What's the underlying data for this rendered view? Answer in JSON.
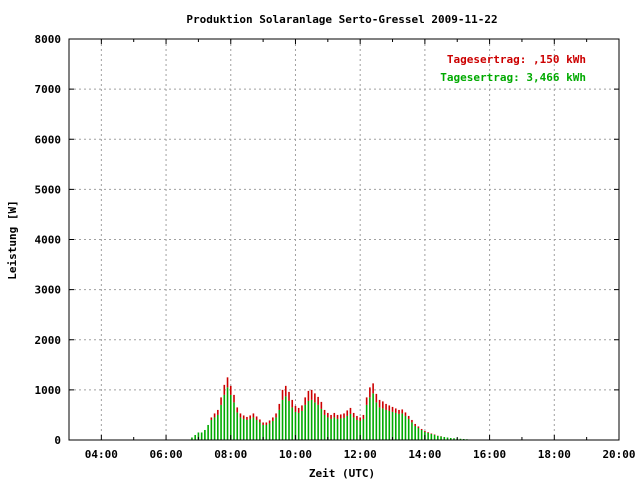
{
  "chart_data": {
    "type": "bar",
    "title": "Produktion Solaranlage Serto-Gressel 2009-11-22",
    "xlabel": "Zeit (UTC)",
    "ylabel": "Leistung [W]",
    "xlim": [
      3,
      20
    ],
    "ylim": [
      0,
      8000
    ],
    "x_tick_labels": [
      "04:00",
      "06:00",
      "08:00",
      "10:00",
      "12:00",
      "14:00",
      "16:00",
      "18:00",
      "20:00"
    ],
    "x_tick_values": [
      4,
      6,
      8,
      10,
      12,
      14,
      16,
      18,
      20
    ],
    "y_tick_labels": [
      "0",
      "1000",
      "2000",
      "3000",
      "4000",
      "5000",
      "6000",
      "7000",
      "8000"
    ],
    "y_tick_values": [
      0,
      1000,
      2000,
      3000,
      4000,
      5000,
      6000,
      7000,
      8000
    ],
    "grid": true,
    "legend_position": "top-right",
    "annotations": [
      {
        "text": "Tagesertrag: ,150 kWh",
        "color": "#cc0000"
      },
      {
        "text": "Tagesertrag: 3,466 kWh",
        "color": "#00aa00"
      }
    ],
    "x": [
      6.8,
      6.9,
      7.0,
      7.1,
      7.2,
      7.3,
      7.4,
      7.5,
      7.6,
      7.7,
      7.8,
      7.9,
      8.0,
      8.1,
      8.2,
      8.3,
      8.4,
      8.5,
      8.6,
      8.7,
      8.8,
      8.9,
      9.0,
      9.1,
      9.2,
      9.3,
      9.4,
      9.5,
      9.6,
      9.7,
      9.8,
      9.9,
      10.0,
      10.1,
      10.2,
      10.3,
      10.4,
      10.5,
      10.6,
      10.7,
      10.8,
      10.9,
      11.0,
      11.1,
      11.2,
      11.3,
      11.4,
      11.5,
      11.6,
      11.7,
      11.8,
      11.9,
      12.0,
      12.1,
      12.2,
      12.3,
      12.4,
      12.5,
      12.6,
      12.7,
      12.8,
      12.9,
      13.0,
      13.1,
      13.2,
      13.3,
      13.4,
      13.5,
      13.6,
      13.7,
      13.8,
      13.9,
      14.0,
      14.1,
      14.2,
      14.3,
      14.4,
      14.5,
      14.6,
      14.7,
      14.8,
      14.9,
      15.0,
      15.1,
      15.2,
      15.3,
      15.4,
      15.5
    ],
    "series": [
      {
        "color": "#00aa00",
        "values": [
          50,
          100,
          150,
          150,
          200,
          300,
          400,
          450,
          500,
          700,
          900,
          1050,
          900,
          750,
          550,
          450,
          420,
          400,
          420,
          450,
          400,
          350,
          300,
          300,
          330,
          380,
          450,
          600,
          800,
          870,
          780,
          650,
          560,
          540,
          580,
          700,
          780,
          800,
          750,
          700,
          620,
          500,
          450,
          420,
          450,
          420,
          430,
          440,
          480,
          520,
          450,
          400,
          380,
          420,
          700,
          850,
          930,
          750,
          650,
          630,
          600,
          580,
          560,
          540,
          520,
          530,
          480,
          420,
          350,
          280,
          240,
          200,
          160,
          140,
          120,
          100,
          80,
          70,
          60,
          50,
          40,
          35,
          30,
          25,
          20,
          15,
          10,
          8
        ]
      },
      {
        "color": "#cc0000",
        "values": [
          0,
          0,
          0,
          0,
          0,
          0,
          50,
          80,
          100,
          150,
          200,
          200,
          180,
          150,
          100,
          80,
          70,
          60,
          70,
          80,
          70,
          60,
          50,
          50,
          60,
          70,
          80,
          120,
          200,
          210,
          180,
          150,
          120,
          100,
          110,
          150,
          200,
          200,
          180,
          160,
          140,
          100,
          90,
          80,
          90,
          80,
          80,
          90,
          110,
          120,
          90,
          80,
          70,
          80,
          150,
          200,
          200,
          170,
          150,
          140,
          120,
          110,
          100,
          90,
          80,
          80,
          70,
          60,
          50,
          40,
          30,
          20,
          20,
          15,
          10,
          10,
          5,
          5,
          0,
          0,
          0,
          0,
          0,
          0,
          0,
          0,
          0,
          0
        ]
      }
    ]
  }
}
